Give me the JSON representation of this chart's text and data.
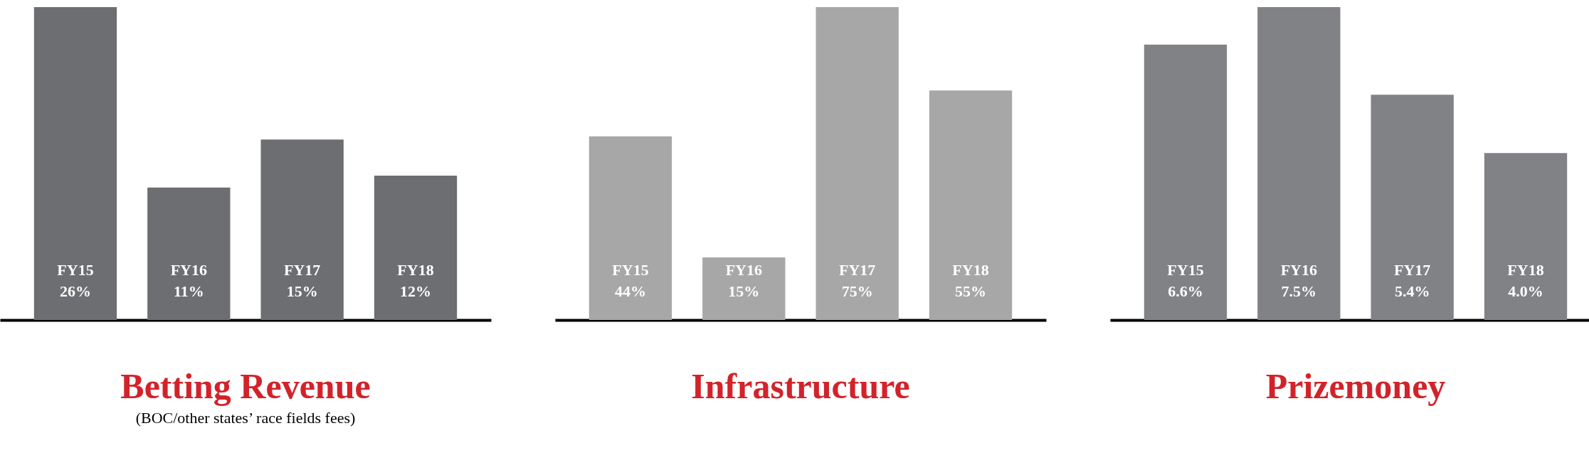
{
  "chart_data": [
    {
      "type": "bar",
      "title": "Betting Revenue",
      "subtitle": "(BOC/other states’ race fields fees)",
      "categories": [
        "FY15",
        "FY16",
        "FY17",
        "FY18"
      ],
      "values": [
        26,
        11,
        15,
        12
      ],
      "value_labels": [
        "26%",
        "11%",
        "15%",
        "12%"
      ],
      "color": "#6d6e71"
    },
    {
      "type": "bar",
      "title": "Infrastructure",
      "categories": [
        "FY15",
        "FY16",
        "FY17",
        "FY18"
      ],
      "values": [
        44,
        15,
        75,
        55
      ],
      "value_labels": [
        "44%",
        "15%",
        "75%",
        "55%"
      ],
      "color": "#a7a7a7"
    },
    {
      "type": "bar",
      "title": "Prizemoney",
      "categories": [
        "FY15",
        "FY16",
        "FY17",
        "FY18"
      ],
      "values": [
        6.6,
        7.5,
        5.4,
        4.0
      ],
      "value_labels": [
        "6.6%",
        "7.5%",
        "5.4%",
        "4.0%"
      ],
      "color": "#808285"
    }
  ]
}
